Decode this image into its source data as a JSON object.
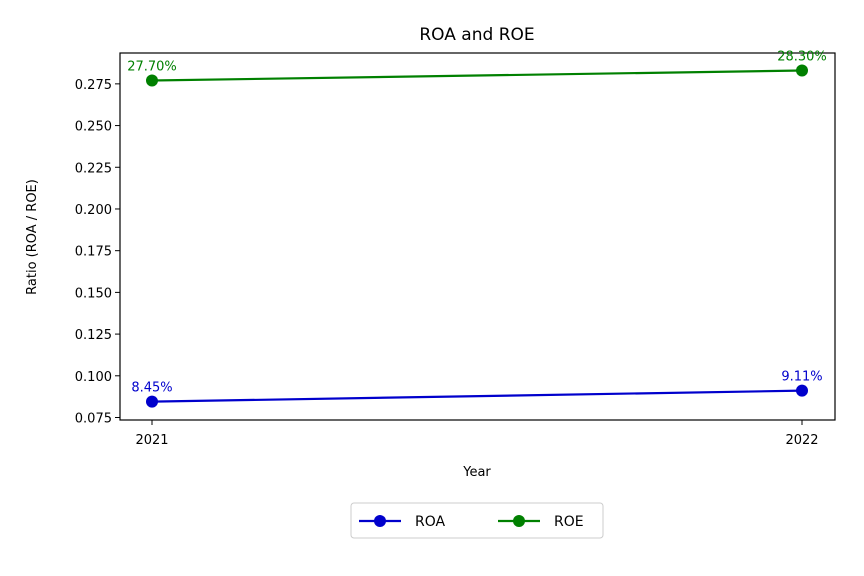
{
  "chart_data": {
    "type": "line",
    "title": "ROA and ROE",
    "xlabel": "Year",
    "ylabel": "Ratio (ROA / ROE)",
    "categories": [
      "2021",
      "2022"
    ],
    "ylim": [
      0.0735,
      0.2935
    ],
    "yticks": [
      0.075,
      0.1,
      0.125,
      0.15,
      0.175,
      0.2,
      0.225,
      0.25,
      0.275
    ],
    "ytick_labels": [
      "0.075",
      "0.100",
      "0.125",
      "0.150",
      "0.175",
      "0.200",
      "0.225",
      "0.250",
      "0.275"
    ],
    "grid": false,
    "legend_position": "bottom-center",
    "series": [
      {
        "name": "ROA",
        "color": "#0000cc",
        "marker": "circle",
        "values": [
          0.0845,
          0.0911
        ],
        "data_labels": [
          "8.45%",
          "9.11%"
        ]
      },
      {
        "name": "ROE",
        "color": "#008000",
        "marker": "circle",
        "values": [
          0.277,
          0.283
        ],
        "data_labels": [
          "27.70%",
          "28.30%"
        ]
      }
    ]
  }
}
